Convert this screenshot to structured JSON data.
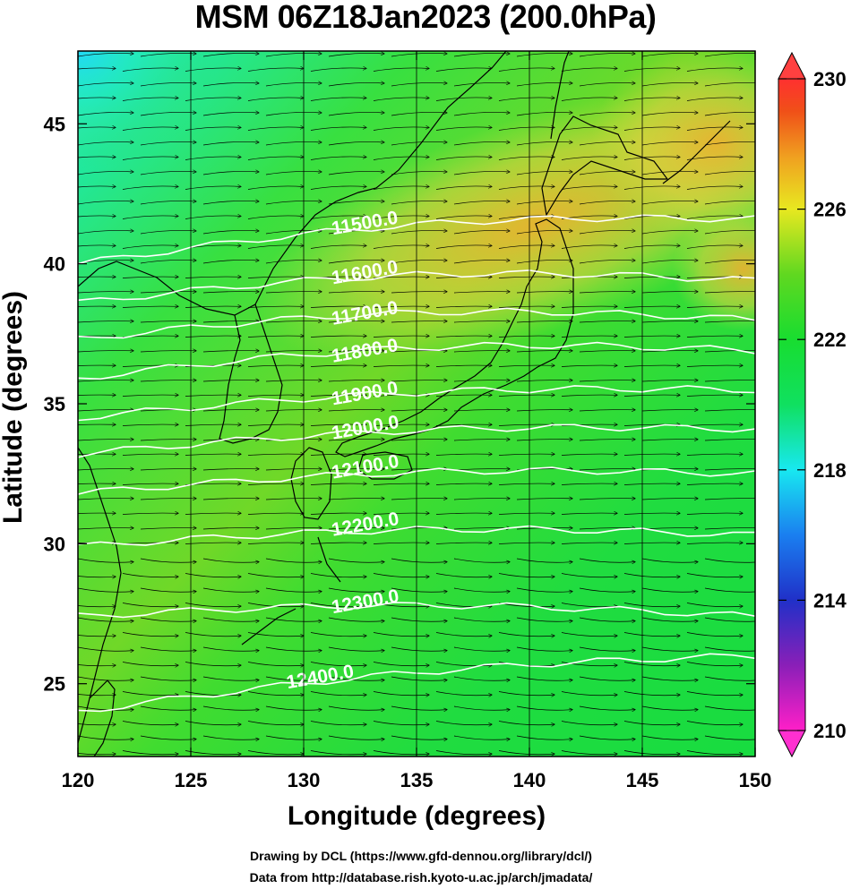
{
  "title": "MSM 06Z18Jan2023 (200.0hPa)",
  "xlabel": "Longitude (degrees)",
  "ylabel": "Latitude  (degrees)",
  "credits": [
    "Drawing by DCL (https://www.gfd-dennou.org/library/dcl/)",
    "Data from http://database.rish.kyoto-u.ac.jp/arch/jmadata/"
  ],
  "map": {
    "projection": "equirectangular",
    "lon_range": [
      120,
      150
    ],
    "lat_range": [
      22.4,
      47.6
    ],
    "lon_ticks": [
      120,
      125,
      130,
      135,
      140,
      145,
      150
    ],
    "lat_ticks": [
      25,
      30,
      35,
      40,
      45
    ],
    "lon_tick_labels": [
      "120",
      "125",
      "130",
      "135",
      "140",
      "145",
      "150"
    ],
    "lat_tick_labels": [
      "25",
      "30",
      "35",
      "40",
      "45"
    ],
    "grid_lon": [
      125,
      130,
      135,
      140,
      145
    ],
    "coastline_color": "#000000",
    "vector_field": "wind arrows, predominantly westerly (west to east)",
    "vector_color": "#000000"
  },
  "colorbar": {
    "range": [
      210,
      230
    ],
    "tick_values": [
      210,
      214,
      218,
      222,
      226,
      230
    ],
    "tick_labels": [
      "210",
      "214",
      "218",
      "222",
      "226",
      "230"
    ],
    "colors": [
      "#ff1fc8",
      "#8a1fb8",
      "#2030c8",
      "#1a7ff0",
      "#18e8f0",
      "#10e060",
      "#18dd30",
      "#60d820",
      "#e8e820",
      "#f0a020",
      "#f05018",
      "#ff3030"
    ]
  },
  "contours": {
    "variable": "geopotential height",
    "color": "#ffffff",
    "levels": [
      11500,
      11600,
      11700,
      11800,
      11900,
      12000,
      12100,
      12200,
      12300,
      12400
    ],
    "labels": [
      "11500.0",
      "11600.0",
      "11700.0",
      "11800.0",
      "11900.0",
      "12000.0",
      "12100.0",
      "12200.0",
      "12300.0",
      "12400.0"
    ],
    "lines": [
      {
        "label": "11500.0",
        "lat_at_120": 40.0,
        "lat_at_150": 41.6
      },
      {
        "label": "11600.0",
        "lat_at_120": 38.6,
        "lat_at_150": 39.4
      },
      {
        "label": "11700.0",
        "lat_at_120": 37.3,
        "lat_at_150": 38.0
      },
      {
        "label": "11800.0",
        "lat_at_120": 35.9,
        "lat_at_150": 36.9
      },
      {
        "label": "11900.0",
        "lat_at_120": 34.5,
        "lat_at_150": 35.5
      },
      {
        "label": "12000.0",
        "lat_at_120": 33.2,
        "lat_at_150": 34.1
      },
      {
        "label": "12100.0",
        "lat_at_120": 31.8,
        "lat_at_150": 32.5
      },
      {
        "label": "12200.0",
        "lat_at_120": 29.9,
        "lat_at_150": 30.3
      },
      {
        "label": "12300.0",
        "lat_at_120": 27.4,
        "lat_at_150": 27.4
      },
      {
        "label": "12400.0",
        "lat_at_120": 24.0,
        "lat_at_150": 26.0
      }
    ]
  }
}
